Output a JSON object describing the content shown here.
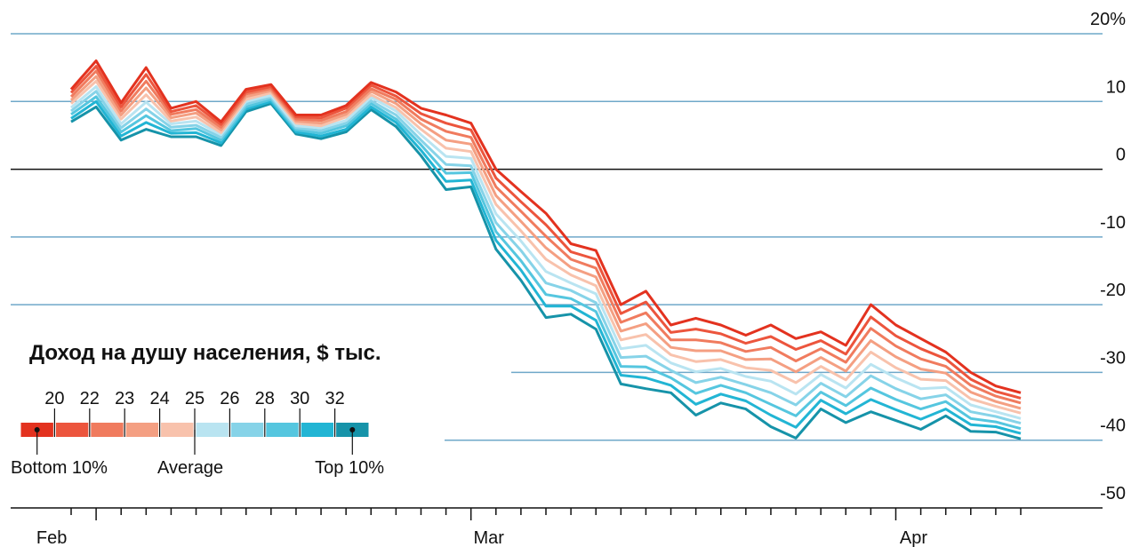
{
  "chart_data": {
    "type": "line",
    "categories": [
      null,
      "Feb",
      null,
      null,
      null,
      null,
      null,
      null,
      null,
      null,
      null,
      null,
      null,
      null,
      null,
      null,
      "Mar",
      null,
      null,
      null,
      null,
      null,
      null,
      null,
      null,
      null,
      null,
      null,
      null,
      null,
      null,
      null,
      null,
      "Apr",
      null,
      null,
      null,
      null,
      null
    ],
    "ylim": [
      -50,
      20
    ],
    "yticks": [
      {
        "value": 20,
        "label": "20%"
      },
      10,
      0,
      -10,
      -20,
      -30,
      -40,
      -50
    ],
    "grid": true,
    "legend": {
      "title": "Доход на душу населения, $ тыс.",
      "ticks": [
        20,
        22,
        23,
        24,
        25,
        26,
        28,
        30,
        32
      ],
      "labels": [
        "Bottom 10%",
        "Average",
        "Top 10%"
      ]
    },
    "series": [
      {
        "color": "#e3321f",
        "values": [
          11.8,
          16,
          9.8,
          15,
          9,
          10,
          7,
          11.8,
          12.5,
          8,
          8,
          9.4,
          12.8,
          11.4,
          9,
          8,
          6.8,
          0,
          -3.3,
          -6.5,
          -11,
          -12,
          -20,
          -18,
          -23,
          -22,
          -23,
          -24.5,
          -23,
          -25,
          -24,
          -26,
          -20,
          -23,
          -25,
          -27,
          -30,
          -32,
          -33
        ]
      },
      {
        "color": "#ec553d",
        "values": [
          11.3,
          15.2,
          9.2,
          14,
          8.5,
          9.4,
          6.6,
          11.4,
          12.2,
          7.7,
          7.6,
          9,
          12.4,
          10.8,
          8.2,
          6.8,
          5.8,
          -1.3,
          -4.8,
          -8.2,
          -12.2,
          -13.3,
          -21.3,
          -19.6,
          -24.1,
          -23.6,
          -24.3,
          -25.7,
          -24.7,
          -26.6,
          -25.3,
          -27.3,
          -21.8,
          -24.6,
          -26.5,
          -28,
          -31,
          -32.8,
          -33.8
        ]
      },
      {
        "color": "#f07b5e",
        "values": [
          10.7,
          14.5,
          8.6,
          13,
          8.1,
          8.8,
          6.2,
          11.1,
          11.9,
          7.4,
          7.2,
          8.5,
          11.9,
          10.3,
          7.4,
          5.6,
          4.7,
          -2.6,
          -6.2,
          -9.9,
          -13.3,
          -14.6,
          -22.6,
          -21.2,
          -25.2,
          -25.2,
          -25.6,
          -26.9,
          -26.3,
          -28.3,
          -26.5,
          -28.5,
          -23.5,
          -26.1,
          -28,
          -29.1,
          -31.9,
          -33.5,
          -34.5
        ]
      },
      {
        "color": "#f49f82",
        "values": [
          10.2,
          13.7,
          8,
          12,
          7.6,
          8.3,
          5.8,
          10.7,
          11.6,
          7.1,
          6.8,
          8.1,
          11.5,
          9.7,
          6.7,
          4.3,
          3.7,
          -3.9,
          -7.7,
          -11.6,
          -14.5,
          -15.9,
          -23.9,
          -22.8,
          -26.3,
          -26.8,
          -26.8,
          -28.1,
          -28,
          -29.9,
          -27.8,
          -29.8,
          -25.3,
          -27.7,
          -29.5,
          -30.1,
          -32.9,
          -34.3,
          -35.3
        ]
      },
      {
        "color": "#f8c2ac",
        "values": [
          9.7,
          13,
          7.4,
          11,
          7.1,
          7.7,
          5.4,
          10.3,
          11.3,
          6.8,
          6.4,
          7.7,
          11,
          9.1,
          5.9,
          3.1,
          2.6,
          -5.2,
          -9.1,
          -13.3,
          -15.6,
          -17.2,
          -25.2,
          -24.4,
          -27.4,
          -28.4,
          -28.1,
          -29.3,
          -29.7,
          -31.5,
          -29.1,
          -31.1,
          -27,
          -29.3,
          -31,
          -31.2,
          -33.9,
          -35,
          -36
        ]
      },
      {
        "color": "#b9e4f1",
        "values": [
          9.1,
          12.2,
          6.7,
          9.9,
          6.7,
          7.1,
          5.1,
          10,
          10.9,
          6.4,
          6.1,
          7.2,
          10.6,
          8.6,
          5.1,
          1.9,
          1.6,
          -6.6,
          -10.6,
          -15.1,
          -16.8,
          -18.4,
          -26.5,
          -26,
          -28.6,
          -29.9,
          -29.4,
          -30.6,
          -31.3,
          -33.2,
          -30.3,
          -32.3,
          -28.8,
          -30.8,
          -32.4,
          -32.2,
          -34.8,
          -35.8,
          -36.8
        ]
      },
      {
        "color": "#86d3e8",
        "values": [
          8.6,
          11.5,
          6.1,
          8.9,
          6.2,
          6.5,
          4.7,
          9.6,
          10.6,
          6.1,
          5.7,
          6.8,
          10.1,
          8,
          4.3,
          0.7,
          0.5,
          -7.9,
          -12,
          -16.8,
          -17.9,
          -19.7,
          -27.8,
          -27.6,
          -29.7,
          -31.5,
          -30.7,
          -31.8,
          -33,
          -34.8,
          -31.6,
          -33.6,
          -30.5,
          -32.4,
          -33.9,
          -33.3,
          -35.8,
          -36.5,
          -37.5
        ]
      },
      {
        "color": "#55c6df",
        "values": [
          8.1,
          10.7,
          5.5,
          7.9,
          5.7,
          6,
          4.3,
          9.2,
          10.3,
          5.8,
          5.3,
          6.4,
          9.7,
          7.4,
          3.6,
          -0.6,
          -0.5,
          -9.2,
          -13.5,
          -18.5,
          -19.1,
          -21,
          -29.1,
          -29.2,
          -30.8,
          -33.1,
          -31.9,
          -33,
          -34.7,
          -36.4,
          -32.9,
          -34.9,
          -32.3,
          -34,
          -35.4,
          -34.3,
          -36.8,
          -37.3,
          -38.3
        ]
      },
      {
        "color": "#22b5d4",
        "values": [
          7.5,
          10,
          4.9,
          6.9,
          5.3,
          5.4,
          3.9,
          8.9,
          10,
          5.5,
          4.9,
          5.9,
          9.2,
          6.9,
          2.8,
          -1.8,
          -1.6,
          -10.5,
          -14.9,
          -20.2,
          -20.2,
          -22.3,
          -30.4,
          -30.8,
          -31.9,
          -34.7,
          -33.2,
          -34.2,
          -36.3,
          -38.1,
          -34.1,
          -36.1,
          -34,
          -35.5,
          -36.9,
          -35.4,
          -37.7,
          -38,
          -39
        ]
      },
      {
        "color": "#1693a9",
        "values": [
          7,
          9.2,
          4.3,
          5.9,
          4.8,
          4.8,
          3.5,
          8.5,
          9.7,
          5.2,
          4.5,
          5.5,
          8.8,
          6.3,
          2,
          -3,
          -2.6,
          -11.8,
          -16.4,
          -21.9,
          -21.4,
          -23.6,
          -31.7,
          -32.4,
          -33,
          -36.3,
          -34.5,
          -35.4,
          -38,
          -39.7,
          -35.4,
          -37.4,
          -35.8,
          -37.1,
          -38.4,
          -36.4,
          -38.7,
          -38.8,
          -39.8
        ]
      }
    ]
  }
}
